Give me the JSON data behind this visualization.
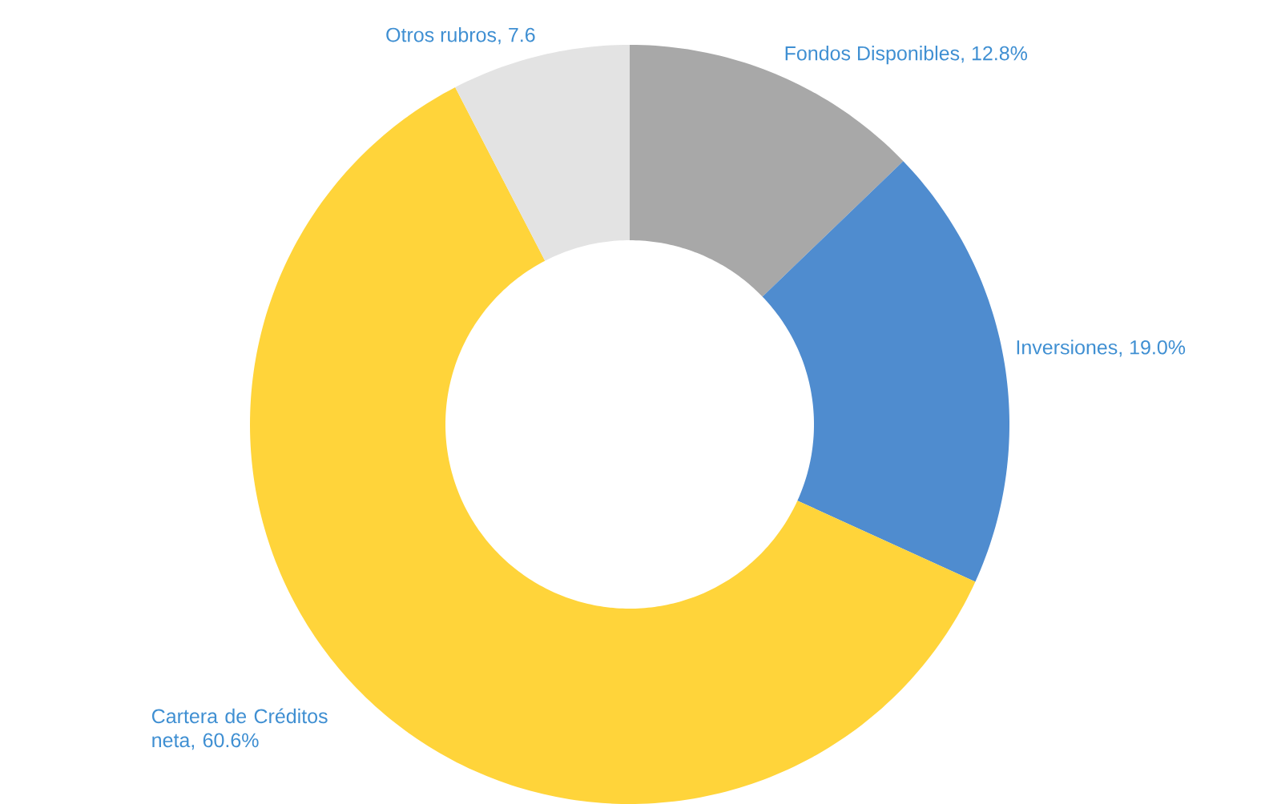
{
  "chart_data": {
    "type": "donut",
    "categories": [
      "Fondos Disponibles, 12.8%",
      "Inversiones, 19.0%",
      "Cartera de Créditos neta, 60.6%",
      "Otros rubros, 7.6"
    ],
    "values": [
      12.8,
      19.0,
      60.6,
      7.6
    ],
    "colors": [
      "#a8a8a8",
      "#4f8ccf",
      "#ffd43a",
      "#e3e3e3"
    ]
  }
}
